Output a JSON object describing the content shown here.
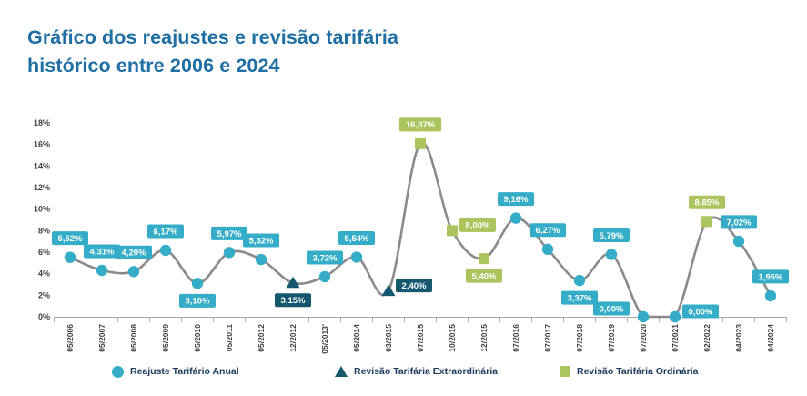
{
  "title": {
    "line1": "Gráfico dos reajustes e revisão tarifária",
    "line2": "histórico entre 2006 e 2024"
  },
  "colors": {
    "title_blue": "#1f6fa5",
    "legend_text": "#1c3c5e",
    "teal": "#35adc8",
    "dark_teal": "#15586e",
    "green": "#abc45e",
    "line_gray": "#8a8a8a",
    "axis_gray": "#a9a9a9"
  },
  "chart_data": {
    "type": "line",
    "title": "Gráfico dos reajustes e revisão tarifária histórico entre 2006 e 2024",
    "xlabel": "",
    "ylabel": "",
    "ylim": [
      0,
      18
    ],
    "y_tick_step": 2,
    "y_tick_format": "percent",
    "grid": false,
    "legend_position": "bottom",
    "line_color": "#8a8a8a",
    "axis_color": "#a9a9a9",
    "series": [
      {
        "id": "reajuste",
        "name": "Reajuste Tarifário Anual",
        "marker": "circle",
        "color": "#35adc8"
      },
      {
        "id": "extraordinaria",
        "name": "Revisão Tarifária Extraordinária",
        "marker": "triangle",
        "color": "#15586e"
      },
      {
        "id": "ordinaria",
        "name": "Revisão Tarifária Ordinária",
        "marker": "square",
        "color": "#abc45e"
      }
    ],
    "points": [
      {
        "category": "05/2006",
        "value": 5.52,
        "label": "5,52%",
        "series": "reajuste",
        "marker": "circle",
        "label_pos": "above"
      },
      {
        "category": "05/2007",
        "value": 4.31,
        "label": "4,31%",
        "series": "reajuste",
        "marker": "circle",
        "label_pos": "above"
      },
      {
        "category": "05/2008",
        "value": 4.2,
        "label": "4,20%",
        "series": "reajuste",
        "marker": "circle",
        "label_pos": "above"
      },
      {
        "category": "05/2009",
        "value": 6.17,
        "label": "6,17%",
        "series": "reajuste",
        "marker": "circle",
        "label_pos": "above"
      },
      {
        "category": "05/2010",
        "value": 3.1,
        "label": "3,10%",
        "series": "reajuste",
        "marker": "circle",
        "label_pos": "below"
      },
      {
        "category": "05/2011",
        "value": 5.97,
        "label": "5,97%",
        "series": "reajuste",
        "marker": "circle",
        "label_pos": "above"
      },
      {
        "category": "05/2012",
        "value": 5.32,
        "label": "5,32%",
        "series": "reajuste",
        "marker": "circle",
        "label_pos": "above"
      },
      {
        "category": "12/2012",
        "value": 3.15,
        "label": "3,15%",
        "series": "extraordinaria",
        "marker": "triangle",
        "label_pos": "below"
      },
      {
        "category": "05/2013'",
        "value": 3.72,
        "label": "3,72%",
        "series": "reajuste",
        "marker": "circle",
        "label_pos": "above"
      },
      {
        "category": "05/2014",
        "value": 5.54,
        "label": "5,54%",
        "series": "reajuste",
        "marker": "circle",
        "label_pos": "above"
      },
      {
        "category": "03/2015",
        "value": 2.4,
        "label": "2,40%",
        "series": "extraordinaria",
        "marker": "triangle",
        "label_pos": "right"
      },
      {
        "category": "07/2015",
        "value": 16.07,
        "label": "16,07%",
        "series": "ordinaria",
        "marker": "square",
        "label_pos": "above"
      },
      {
        "category": "10/2015",
        "value": 8.0,
        "label": "8,00%",
        "series": "ordinaria",
        "marker": "square",
        "label_pos": "right"
      },
      {
        "category": "12/2015",
        "value": 5.4,
        "label": "5,40%",
        "series": "ordinaria",
        "marker": "square",
        "label_pos": "below"
      },
      {
        "category": "07/2016",
        "value": 9.16,
        "label": "9,16%",
        "series": "reajuste",
        "marker": "circle",
        "label_pos": "above"
      },
      {
        "category": "07/2017",
        "value": 6.27,
        "label": "6,27%",
        "series": "reajuste",
        "marker": "circle",
        "label_pos": "above"
      },
      {
        "category": "07/2018",
        "value": 3.37,
        "label": "3,37%",
        "series": "reajuste",
        "marker": "circle",
        "label_pos": "below"
      },
      {
        "category": "07/2019",
        "value": 5.79,
        "label": "5,79%",
        "series": "reajuste",
        "marker": "circle",
        "label_pos": "above"
      },
      {
        "category": "07/2020",
        "value": 0.0,
        "label": "0,00%",
        "series": "reajuste",
        "marker": "circle",
        "label_pos": "left"
      },
      {
        "category": "07/2021",
        "value": 0.0,
        "label": "0,00%",
        "series": "reajuste",
        "marker": "circle",
        "label_pos": "right"
      },
      {
        "category": "02/2022",
        "value": 8.85,
        "label": "8,85%",
        "series": "ordinaria",
        "marker": "square",
        "label_pos": "above"
      },
      {
        "category": "04/2023",
        "value": 7.02,
        "label": "7,02%",
        "series": "reajuste",
        "marker": "circle",
        "label_pos": "above"
      },
      {
        "category": "04/2024",
        "value": 1.95,
        "label": "1,95%",
        "series": "reajuste",
        "marker": "circle",
        "label_pos": "above"
      }
    ]
  }
}
